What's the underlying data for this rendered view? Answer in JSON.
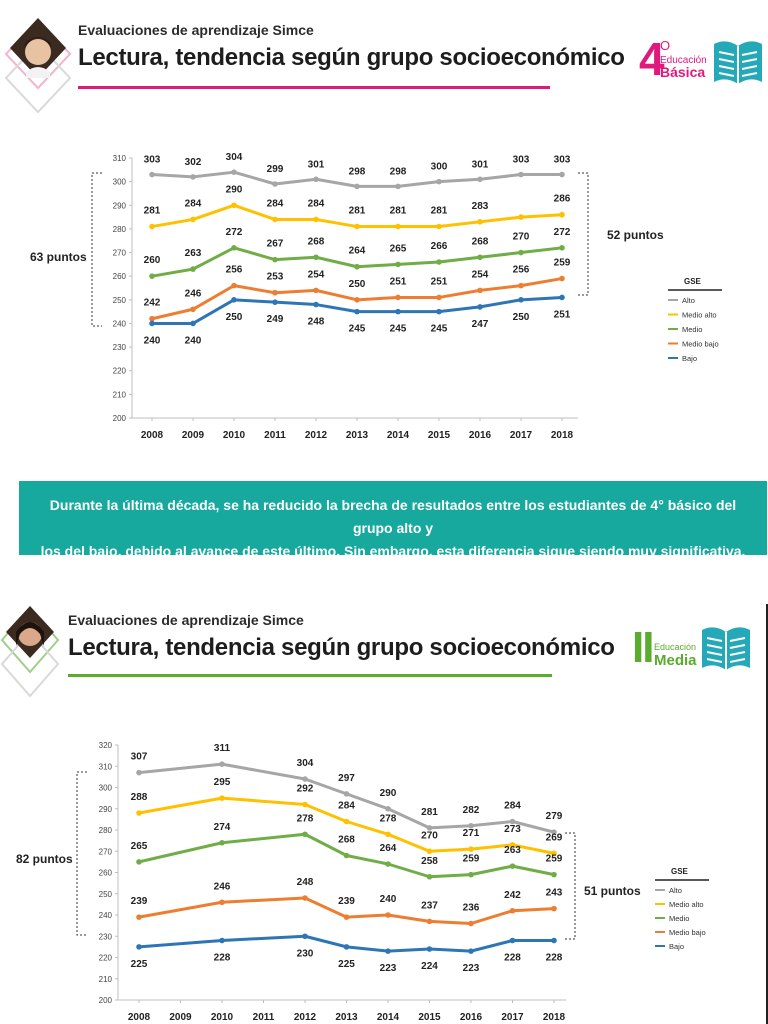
{
  "colors": {
    "alto": "#a6a6a6",
    "medio_alto": "#ffc000",
    "medio": "#70ad47",
    "medio_bajo": "#ed7d31",
    "bajo": "#2e75b6",
    "pink": "#e0197d",
    "green": "#5aab2e",
    "teal": "#17a89e"
  },
  "panel1": {
    "kicker": "Evaluaciones de aprendizaje Simce",
    "title": "Lectura, tendencia según grupo socioeconómico",
    "badge": {
      "number": "4",
      "sup": "O",
      "small": "Educación",
      "big": "Básica"
    },
    "gap_left": "63 puntos",
    "gap_right": "52 puntos"
  },
  "banner": {
    "line1": "Durante la última década, se ha reducido la brecha de resultados entre los estudiantes de 4° básico del grupo alto y",
    "line2": "los del bajo, debido al avance de este último. Sin embargo, esta diferencia sigue siendo muy significativa."
  },
  "panel2": {
    "kicker": "Evaluaciones de aprendizaje Simce",
    "title": "Lectura, tendencia según grupo socioeconómico",
    "badge": {
      "number": "II",
      "small": "Educación",
      "big": "Media"
    },
    "gap_left": "82 puntos",
    "gap_right": "51 puntos"
  },
  "chart_data": [
    {
      "type": "line",
      "categories": [
        "2008",
        "2009",
        "2010",
        "2011",
        "2012",
        "2013",
        "2014",
        "2015",
        "2016",
        "2017",
        "2018"
      ],
      "ylim": [
        200,
        310
      ],
      "yticks": [
        200,
        210,
        220,
        230,
        240,
        250,
        260,
        270,
        280,
        290,
        300,
        310
      ],
      "legend_title": "GSE",
      "legend_position": "right",
      "series": [
        {
          "name": "Alto",
          "color_key": "alto",
          "values": [
            303,
            302,
            304,
            299,
            301,
            298,
            298,
            300,
            301,
            303,
            303
          ],
          "labels": [
            "303",
            "302",
            "304",
            "299",
            "301",
            "298",
            "298",
            "300",
            "301",
            "303",
            "303"
          ]
        },
        {
          "name": "Medio alto",
          "color_key": "medio_alto",
          "values": [
            281,
            284,
            290,
            284,
            284,
            281,
            281,
            281,
            283,
            285,
            286
          ],
          "labels": [
            "281",
            "284",
            "290",
            "284",
            "284",
            "281",
            "281",
            "281",
            "283",
            "",
            "286"
          ]
        },
        {
          "name": "Medio",
          "color_key": "medio",
          "values": [
            260,
            263,
            272,
            267,
            268,
            264,
            265,
            266,
            268,
            270,
            272
          ],
          "labels": [
            "260",
            "263",
            "272",
            "267",
            "268",
            "264",
            "265",
            "266",
            "268",
            "270",
            "272"
          ]
        },
        {
          "name": "Medio bajo",
          "color_key": "medio_bajo",
          "values": [
            242,
            246,
            256,
            253,
            254,
            250,
            251,
            251,
            254,
            256,
            259
          ],
          "labels": [
            "242",
            "246",
            "256",
            "253",
            "254",
            "250",
            "251",
            "251",
            "254",
            "256",
            "259"
          ]
        },
        {
          "name": "Bajo",
          "color_key": "bajo",
          "values": [
            240,
            240,
            250,
            249,
            248,
            245,
            245,
            245,
            247,
            250,
            251
          ],
          "labels": [
            "240",
            "240",
            "250",
            "249",
            "248",
            "245",
            "245",
            "245",
            "247",
            "250",
            "251"
          ]
        }
      ]
    },
    {
      "type": "line",
      "categories": [
        "2008",
        "2009",
        "2010",
        "2011",
        "2012",
        "2013",
        "2014",
        "2015",
        "2016",
        "2017",
        "2018"
      ],
      "ylim": [
        200,
        320
      ],
      "yticks": [
        200,
        210,
        220,
        230,
        240,
        250,
        260,
        270,
        280,
        290,
        300,
        310,
        320
      ],
      "legend_title": "GSE",
      "legend_position": "right",
      "series": [
        {
          "name": "Alto",
          "color_key": "alto",
          "values": [
            307,
            null,
            311,
            null,
            304,
            297,
            290,
            281,
            282,
            284,
            279
          ],
          "labels": [
            "307",
            "",
            "311",
            "",
            "304",
            "297",
            "290",
            "281",
            "282",
            "284",
            "279"
          ]
        },
        {
          "name": "Medio alto",
          "color_key": "medio_alto",
          "values": [
            288,
            null,
            295,
            null,
            292,
            284,
            278,
            270,
            271,
            273,
            269
          ],
          "labels": [
            "288",
            "",
            "295",
            "",
            "292",
            "284",
            "278",
            "270",
            "271",
            "273",
            "269"
          ]
        },
        {
          "name": "Medio",
          "color_key": "medio",
          "values": [
            265,
            null,
            274,
            null,
            278,
            268,
            264,
            258,
            259,
            263,
            259
          ],
          "labels": [
            "265",
            "",
            "274",
            "",
            "278",
            "268",
            "264",
            "258",
            "259",
            "263",
            "259"
          ]
        },
        {
          "name": "Medio bajo",
          "color_key": "medio_bajo",
          "values": [
            239,
            null,
            246,
            null,
            248,
            239,
            240,
            237,
            236,
            242,
            243
          ],
          "labels": [
            "239",
            "",
            "246",
            "",
            "248",
            "239",
            "240",
            "237",
            "236",
            "242",
            "243"
          ]
        },
        {
          "name": "Bajo",
          "color_key": "bajo",
          "values": [
            225,
            null,
            228,
            null,
            230,
            225,
            223,
            224,
            223,
            228,
            228
          ],
          "labels": [
            "225",
            "",
            "228",
            "",
            "230",
            "225",
            "223",
            "224",
            "223",
            "228",
            "228"
          ]
        }
      ]
    }
  ]
}
